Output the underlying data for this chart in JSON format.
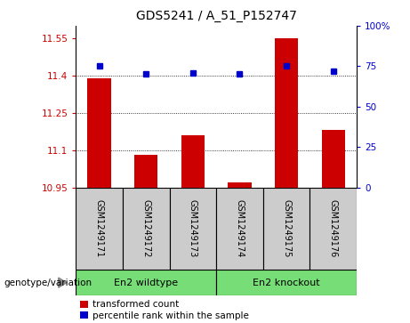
{
  "title": "GDS5241 / A_51_P152747",
  "samples": [
    "GSM1249171",
    "GSM1249172",
    "GSM1249173",
    "GSM1249174",
    "GSM1249175",
    "GSM1249176"
  ],
  "red_values": [
    11.39,
    11.08,
    11.16,
    10.97,
    11.55,
    11.18
  ],
  "blue_values": [
    75,
    70,
    71,
    70,
    75,
    72
  ],
  "group1_label": "En2 wildtype",
  "group2_label": "En2 knockout",
  "group1_indices": [
    0,
    1,
    2
  ],
  "group2_indices": [
    3,
    4,
    5
  ],
  "ylim_left": [
    10.95,
    11.6
  ],
  "ylim_right": [
    0,
    100
  ],
  "yticks_left": [
    10.95,
    11.1,
    11.25,
    11.4,
    11.55
  ],
  "yticks_right": [
    0,
    25,
    50,
    75,
    100
  ],
  "ytick_labels_left": [
    "10.95",
    "11.1",
    "11.25",
    "11.4",
    "11.55"
  ],
  "ytick_labels_right": [
    "0",
    "25",
    "50",
    "75",
    "100%"
  ],
  "red_color": "#cc0000",
  "blue_color": "#0000cc",
  "bar_width": 0.5,
  "bg_label": "#cccccc",
  "bg_group": "#77dd77",
  "label_text": "genotype/variation",
  "legend_red": "transformed count",
  "legend_blue": "percentile rank within the sample",
  "gridlines": [
    11.1,
    11.25,
    11.4
  ]
}
